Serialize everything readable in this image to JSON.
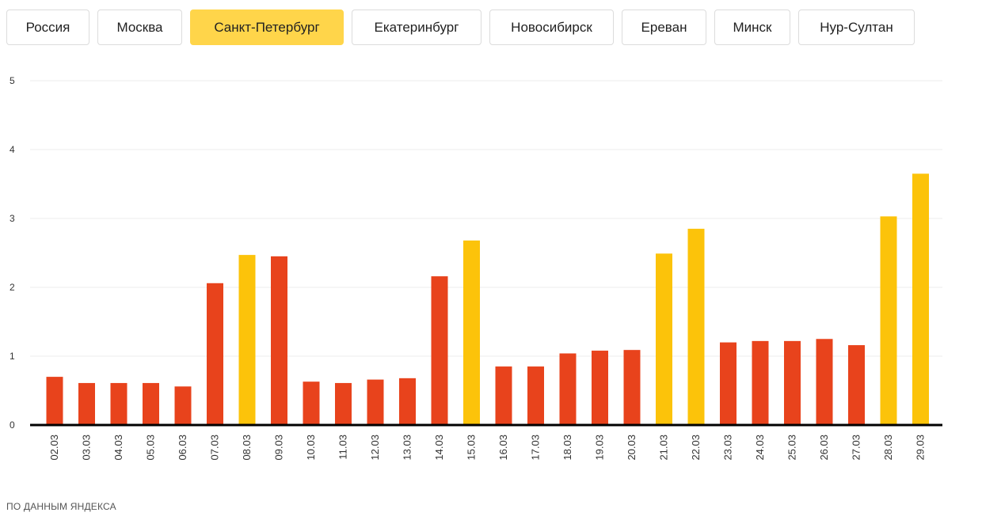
{
  "tabs": [
    {
      "label": "Россия",
      "active": false
    },
    {
      "label": "Москва",
      "active": false
    },
    {
      "label": "Санкт-Петербург",
      "active": true
    },
    {
      "label": "Екатеринбург",
      "active": false
    },
    {
      "label": "Новосибирск",
      "active": false
    },
    {
      "label": "Ереван",
      "active": false
    },
    {
      "label": "Минск",
      "active": false
    },
    {
      "label": "Нур-Султан",
      "active": false
    }
  ],
  "colors": {
    "weekday_bar": "#e8431c",
    "weekend_bar": "#fcc30a",
    "active_tab": "#ffd54a",
    "axis": "#000000",
    "grid": "#eeeeee"
  },
  "chart_data": {
    "type": "bar",
    "categories": [
      "02.03",
      "03.03",
      "04.03",
      "05.03",
      "06.03",
      "07.03",
      "08.03",
      "09.03",
      "10.03",
      "11.03",
      "12.03",
      "13.03",
      "14.03",
      "15.03",
      "16.03",
      "17.03",
      "18.03",
      "19.03",
      "20.03",
      "21.03",
      "22.03",
      "23.03",
      "24.03",
      "25.03",
      "26.03",
      "27.03",
      "28.03",
      "29.03"
    ],
    "values": [
      0.7,
      0.61,
      0.61,
      0.61,
      0.56,
      2.06,
      2.47,
      2.45,
      0.63,
      0.61,
      0.66,
      0.68,
      2.16,
      2.68,
      0.85,
      0.85,
      1.04,
      1.08,
      1.09,
      2.49,
      2.85,
      1.2,
      1.22,
      1.22,
      1.25,
      1.16,
      3.03,
      3.65
    ],
    "highlighted": [
      false,
      false,
      false,
      false,
      false,
      false,
      true,
      false,
      false,
      false,
      false,
      false,
      false,
      true,
      false,
      false,
      false,
      false,
      false,
      true,
      true,
      false,
      false,
      false,
      false,
      false,
      true,
      true
    ],
    "yticks": [
      0,
      1,
      2,
      3,
      4,
      5
    ],
    "ylim": [
      0,
      5
    ],
    "grid": true
  },
  "source_label": "ПО ДАННЫМ ЯНДЕКСА"
}
